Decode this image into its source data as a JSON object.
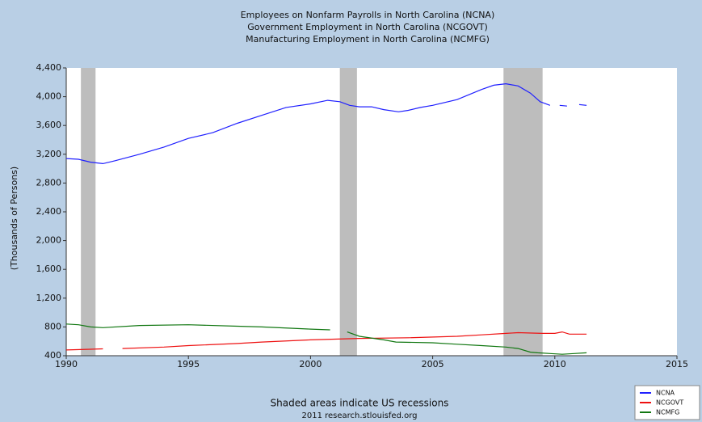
{
  "chart_data": {
    "type": "line",
    "title": [
      "Employees on Nonfarm Payrolls in North Carolina (NCNA)",
      "Government Employment in North Carolina (NCGOVT)",
      "Manufacturing Employment in North Carolina (NCMFG)"
    ],
    "ylabel": "(Thousands of Persons)",
    "note": [
      "Shaded areas indicate US recessions",
      "2011 research.stlouisfed.org"
    ],
    "xlim": [
      1990,
      2015
    ],
    "xticks": [
      1990,
      1995,
      2000,
      2005,
      2010,
      2015
    ],
    "ylim": [
      400,
      4400
    ],
    "yticks": [
      400,
      800,
      {
        "value": 1200,
        "label": "1,200"
      },
      {
        "value": 1600,
        "label": "1,600"
      },
      {
        "value": 2000,
        "label": "2,000"
      },
      {
        "value": 2400,
        "label": "2,400"
      },
      {
        "value": 2800,
        "label": "2,800"
      },
      {
        "value": 3200,
        "label": "3,200"
      },
      {
        "value": 3600,
        "label": "3,600"
      },
      {
        "value": 4000,
        "label": "4,000"
      },
      {
        "value": 4400,
        "label": "4,400"
      }
    ],
    "recessions": [
      [
        1990.6,
        1991.2
      ],
      [
        2001.2,
        2001.9
      ],
      [
        2007.9,
        2009.5
      ]
    ],
    "legend": "lower right",
    "series": [
      {
        "name": "NCNA",
        "color": "#2020ff",
        "x": [
          1990,
          1990.5,
          1991,
          1991.5,
          1992,
          1993,
          1994,
          1995,
          1996,
          1997,
          1998,
          1999,
          2000,
          2000.7,
          2001.2,
          2001.6,
          2002,
          2002.5,
          2003,
          2003.6,
          2004,
          2004.5,
          2005,
          2006,
          2007,
          2007.5,
          2008,
          2008.5,
          2009,
          2009.4,
          2009.8,
          2010,
          2010.2,
          2010.5,
          2010.8,
          2011,
          2011.3
        ],
        "values": [
          3140,
          3130,
          3090,
          3070,
          3110,
          3200,
          3300,
          3420,
          3500,
          3630,
          3740,
          3850,
          3900,
          3950,
          3930,
          3880,
          3860,
          3860,
          3820,
          3790,
          3810,
          3850,
          3880,
          3960,
          4100,
          4160,
          4180,
          4150,
          4050,
          3930,
          3880,
          null,
          3880,
          3870,
          null,
          3890,
          3880
        ]
      },
      {
        "name": "NCGOVT",
        "color": "#ee1111",
        "x": [
          1990,
          1991,
          1991.5,
          1992,
          1992.3,
          1994,
          1995,
          1997,
          1998,
          2000,
          2001,
          2002,
          2004,
          2006,
          2007,
          2008,
          2008.5,
          2009.5,
          2010,
          2010.3,
          2010.6,
          2011.3
        ],
        "values": [
          480,
          490,
          495,
          null,
          500,
          520,
          540,
          570,
          590,
          620,
          630,
          640,
          650,
          670,
          690,
          710,
          720,
          710,
          710,
          730,
          700,
          700
        ]
      },
      {
        "name": "NCMFG",
        "color": "#117711",
        "x": [
          1990,
          1990.5,
          1991,
          1991.5,
          1993,
          1995,
          1997,
          1998,
          2000,
          2000.8,
          2001,
          2001.5,
          2002,
          2003,
          2003.5,
          2005,
          2006,
          2007,
          2008,
          2008.5,
          2009,
          2009.3,
          2009.8,
          2010.3,
          2010.8,
          2011.3
        ],
        "values": [
          840,
          830,
          800,
          790,
          820,
          830,
          810,
          800,
          770,
          760,
          null,
          730,
          670,
          620,
          590,
          580,
          560,
          540,
          520,
          500,
          450,
          440,
          430,
          420,
          430,
          440
        ]
      }
    ]
  }
}
